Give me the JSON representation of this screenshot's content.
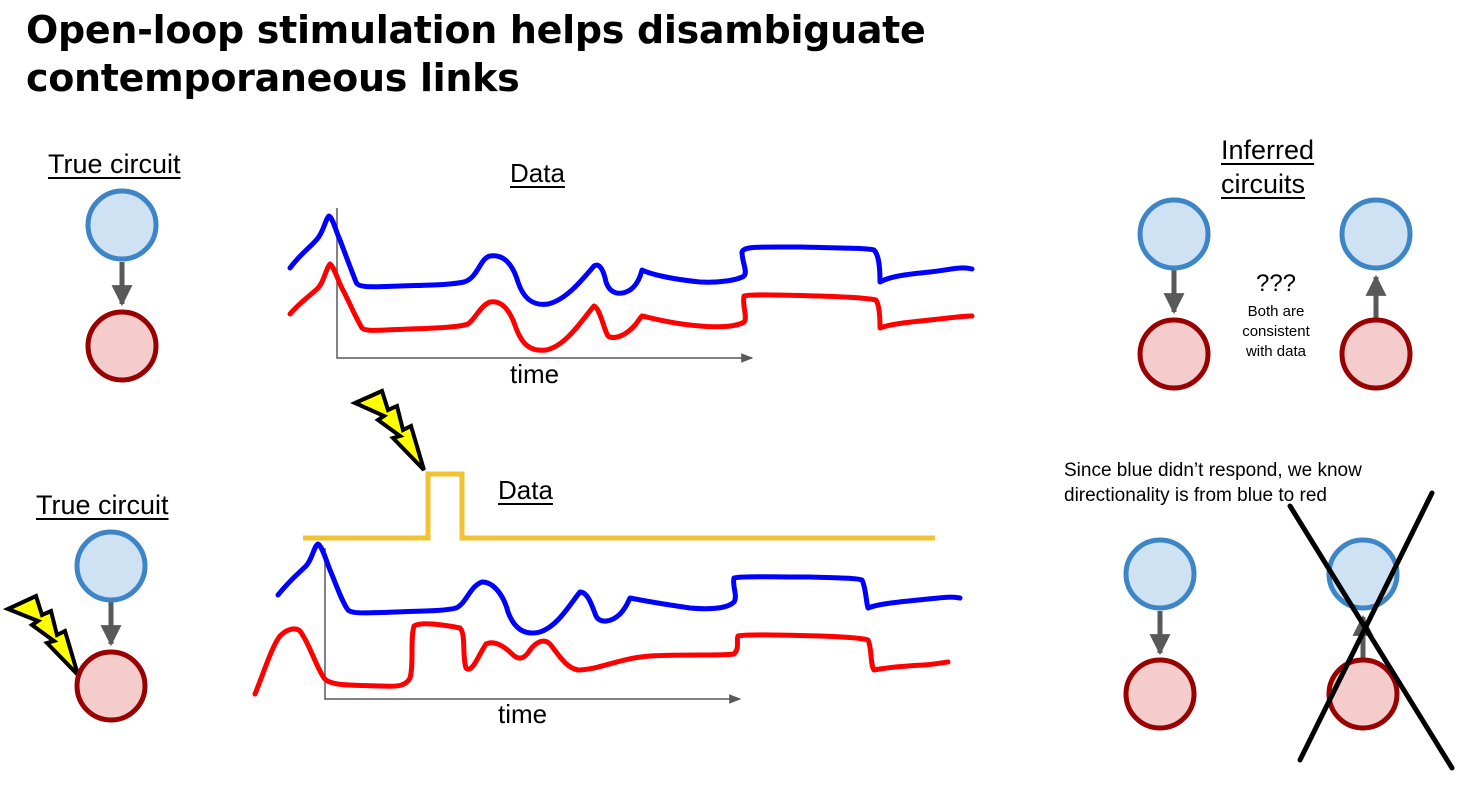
{
  "title": {
    "line1": "Open-loop stimulation helps disambiguate",
    "line2": "contemporaneous links"
  },
  "top_panel": {
    "true_circuit_label": "True circuit",
    "data_label": "Data",
    "time_label": "time"
  },
  "bottom_panel": {
    "true_circuit_label": "True circuit",
    "data_label": "Data",
    "time_label": "time"
  },
  "inferred": {
    "label_line1": "Inferred",
    "label_line2": "circuits",
    "question": "???",
    "note_line1": "Both are",
    "note_line2": "consistent",
    "note_line3": "with data"
  },
  "conclusion": {
    "line1": "Since blue didn’t respond, we know",
    "line2": "directionality is from blue to red"
  },
  "colors": {
    "blue_node_fill": "#cfe2f3",
    "blue_node_stroke": "#3d85c6",
    "red_node_fill": "#f4cccc",
    "red_node_stroke": "#990000",
    "blue_trace": "#0000ff",
    "red_trace": "#ff0000",
    "stim_trace": "#f1c232",
    "arrow": "#595959",
    "lightning_fill": "#ffff00"
  },
  "icons": [
    "lightning-bolt-icon",
    "cross-out-icon"
  ]
}
